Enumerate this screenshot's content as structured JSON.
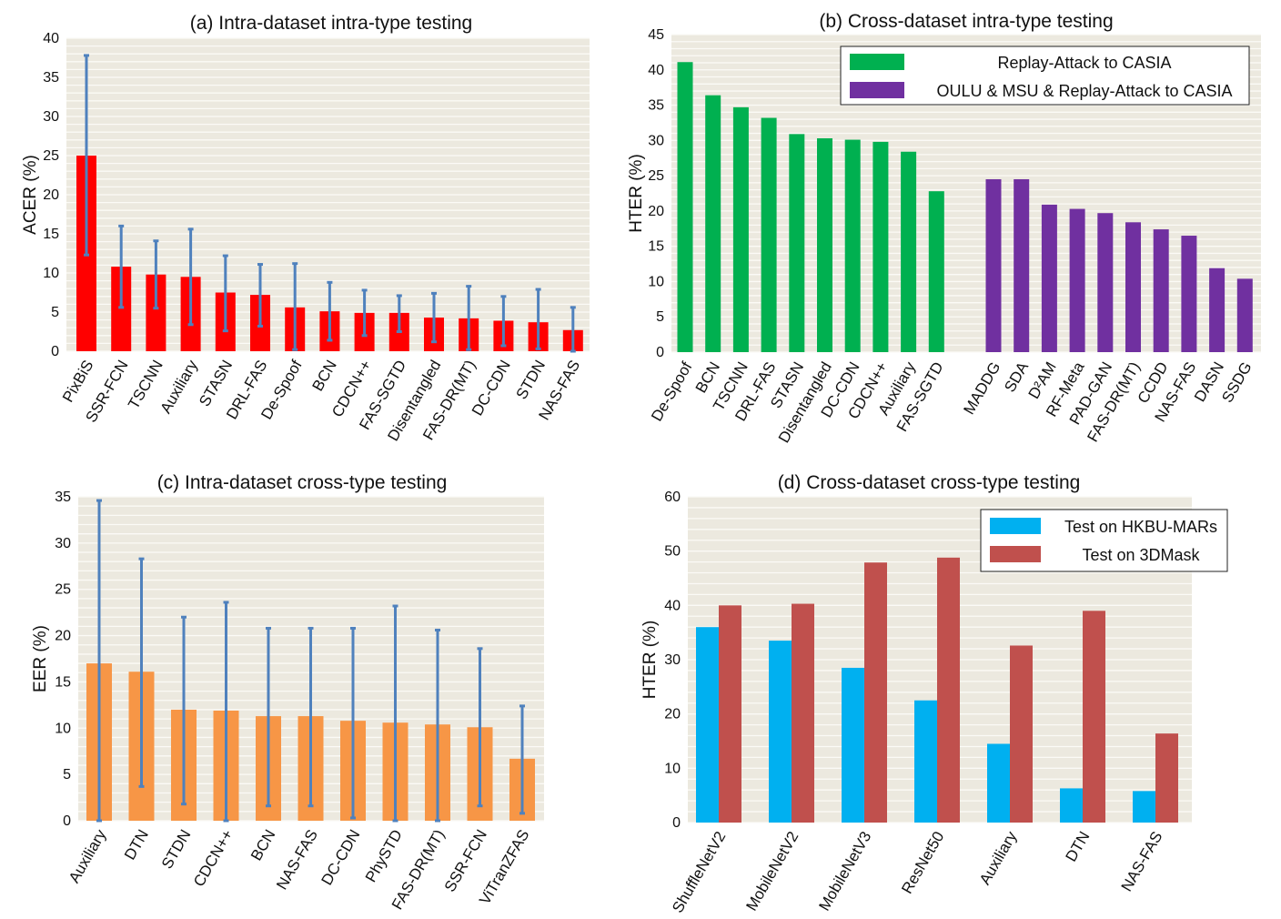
{
  "colors": {
    "plot_bg": "#ECE9DF",
    "grid": "#FBFAF6",
    "red": "#FF0000",
    "green": "#00B050",
    "purple": "#7030A0",
    "orange": "#F79646",
    "blue": "#00B0F0",
    "brick": "#C0504D",
    "error": "#4F81BD"
  },
  "chart_data": [
    {
      "id": "a",
      "type": "bar",
      "title": "(a) Intra-dataset intra-type testing",
      "xlabel": "",
      "ylabel": "ACER (%)",
      "ylim": [
        0,
        40
      ],
      "yticks": [
        0,
        5,
        10,
        15,
        20,
        25,
        30,
        35,
        40
      ],
      "grid": true,
      "categories": [
        "PixBiS",
        "SSR-FCN",
        "TSCNN",
        "Auxiliary",
        "STASN",
        "DRL-FAS",
        "De-Spoof",
        "BCN",
        "CDCN++",
        "FAS-SGTD",
        "Disentangled",
        "FAS-DR(MT)",
        "DC-CDN",
        "STDN",
        "NAS-FAS"
      ],
      "series": [
        {
          "name": "ACER",
          "color": "#FF0000",
          "values": [
            25.0,
            10.8,
            9.8,
            9.5,
            7.5,
            7.2,
            5.6,
            5.1,
            4.9,
            4.9,
            4.3,
            4.2,
            3.9,
            3.7,
            2.7
          ],
          "error_low": [
            12.3,
            5.6,
            5.5,
            3.4,
            2.6,
            3.2,
            0.2,
            1.4,
            2.0,
            2.5,
            1.2,
            0.2,
            0.7,
            0.3,
            0.0
          ],
          "error_high": [
            37.8,
            16.0,
            14.1,
            15.6,
            12.2,
            11.1,
            11.2,
            8.8,
            7.8,
            7.1,
            7.4,
            8.3,
            7.0,
            7.9,
            5.6
          ]
        }
      ]
    },
    {
      "id": "b",
      "type": "bar",
      "title": "(b) Cross-dataset intra-type testing",
      "xlabel": "",
      "ylabel": "HTER (%)",
      "ylim": [
        0,
        45
      ],
      "yticks": [
        0,
        5,
        10,
        15,
        20,
        25,
        30,
        35,
        40,
        45
      ],
      "grid": true,
      "legend_position": "top-right",
      "groups": [
        {
          "name": "Replay-Attack to CASIA",
          "color": "#00B050",
          "categories": [
            "De-Spoof",
            "BCN",
            "TSCNN",
            "DRL-FAS",
            "STASN",
            "Disentangled",
            "DC-CDN",
            "CDCN++",
            "Auxiliary",
            "FAS-SGTD"
          ],
          "values": [
            41.1,
            36.4,
            34.7,
            33.2,
            30.9,
            30.3,
            30.1,
            29.8,
            28.4,
            22.8
          ]
        },
        {
          "name": "OULU & MSU & Replay-Attack to CASIA",
          "color": "#7030A0",
          "categories": [
            "MADDG",
            "SDA",
            "D²AM",
            "RF-Meta",
            "PAD-GAN",
            "FAS-DR(MT)",
            "CCDD",
            "NAS-FAS",
            "DASN",
            "SSDG"
          ],
          "values": [
            24.5,
            24.5,
            20.9,
            20.3,
            19.7,
            18.4,
            17.4,
            16.5,
            11.9,
            10.4
          ]
        }
      ]
    },
    {
      "id": "c",
      "type": "bar",
      "title": "(c) Intra-dataset cross-type testing",
      "xlabel": "",
      "ylabel": "EER (%)",
      "ylim": [
        0,
        35
      ],
      "yticks": [
        0,
        5,
        10,
        15,
        20,
        25,
        30,
        35
      ],
      "grid": true,
      "categories": [
        "Auxiliary",
        "DTN",
        "STDN",
        "CDCN++",
        "BCN",
        "NAS-FAS",
        "DC-CDN",
        "PhySTD",
        "FAS-DR(MT)",
        "SSR-FCN",
        "ViTranZFAS"
      ],
      "series": [
        {
          "name": "EER",
          "color": "#F79646",
          "values": [
            17.0,
            16.1,
            12.0,
            11.9,
            11.3,
            11.3,
            10.8,
            10.6,
            10.4,
            10.1,
            6.7
          ],
          "error_low": [
            0.0,
            3.7,
            1.8,
            0.0,
            1.6,
            1.6,
            0.3,
            0.0,
            0.0,
            1.6,
            0.8
          ],
          "error_high": [
            34.6,
            28.3,
            22.0,
            23.6,
            20.8,
            20.8,
            20.8,
            23.2,
            20.6,
            18.6,
            12.4
          ]
        }
      ]
    },
    {
      "id": "d",
      "type": "bar",
      "title": "(d) Cross-dataset cross-type testing",
      "xlabel": "",
      "ylabel": "HTER (%)",
      "ylim": [
        0,
        60
      ],
      "yticks": [
        0,
        10,
        20,
        30,
        40,
        50,
        60
      ],
      "grid": true,
      "legend_position": "top-right",
      "categories": [
        "ShuffleNetV2",
        "MobileNetV2",
        "MobileNetV3",
        "ResNet50",
        "Auxiliary",
        "DTN",
        "NAS-FAS"
      ],
      "series": [
        {
          "name": "Test on HKBU-MARs",
          "color": "#00B0F0",
          "values": [
            36.0,
            33.5,
            28.5,
            22.5,
            14.5,
            6.3,
            5.8
          ]
        },
        {
          "name": "Test on 3DMask",
          "color": "#C0504D",
          "values": [
            40.0,
            40.3,
            47.9,
            48.8,
            32.6,
            39.0,
            16.4
          ]
        }
      ]
    }
  ]
}
